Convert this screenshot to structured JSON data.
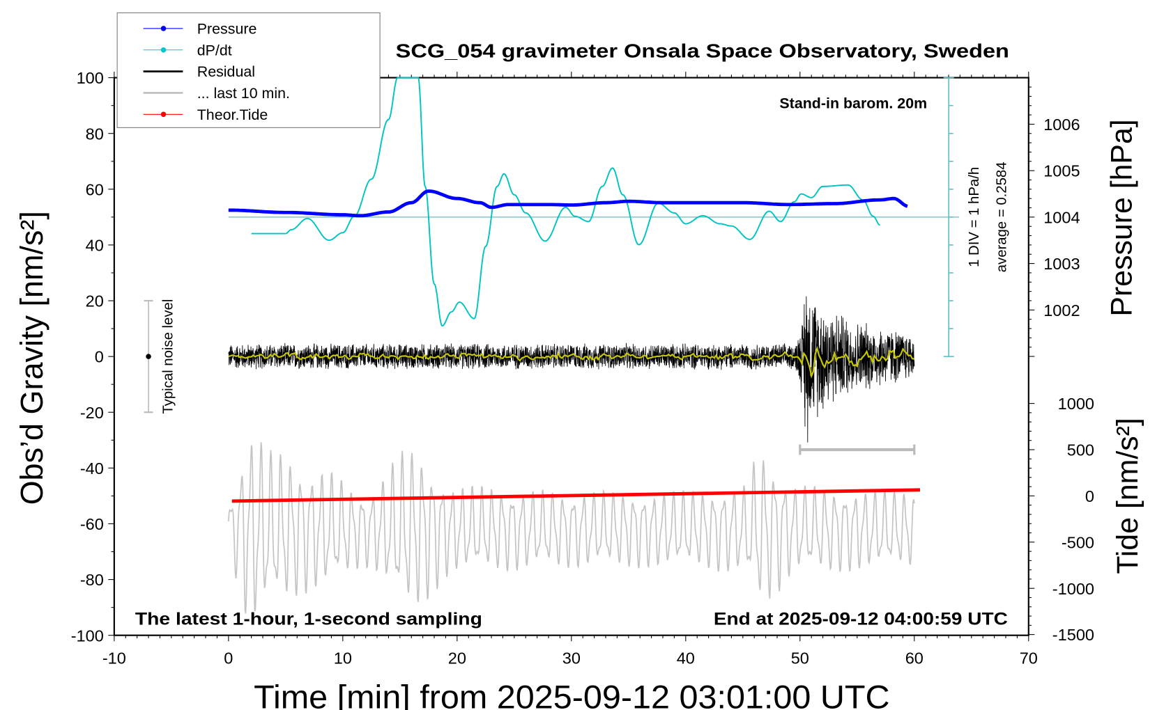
{
  "chart_data": {
    "type": "line",
    "title": "SCG_054 gravimeter Onsala Space Observatory, Sweden",
    "xlabel": "Time [min] from 2025-09-12 03:01:00 UTC",
    "ylabel": "Obs’d Gravity [nm/s²]",
    "ylabel_pressure": "Pressure [hPa]",
    "ylabel_tide": "Tide [nm/s²]",
    "xlim": [
      -10,
      70
    ],
    "ylim": [
      -100,
      100
    ],
    "pressure_lim_visible": [
      1001,
      1007
    ],
    "tide_lim": [
      -1500,
      1000
    ],
    "x_ticks": [
      "-10",
      "0",
      "10",
      "20",
      "30",
      "40",
      "50",
      "60",
      "70"
    ],
    "y_ticks": [
      "-100",
      "-80",
      "-60",
      "-40",
      "-20",
      "0",
      "20",
      "40",
      "60",
      "80",
      "100"
    ],
    "pressure_ticks": [
      "1002",
      "1003",
      "1004",
      "1005",
      "1006"
    ],
    "tide_ticks": [
      "-1500",
      "-1000",
      "-500",
      "0",
      "500",
      "1000"
    ],
    "annotations": {
      "barometer": "Stand-in barom. 20m",
      "sampling": "The latest 1-hour, 1-second sampling",
      "end_time": "End at 2025-09-12 04:00:59 UTC",
      "dpdt_scale": "1 DIV = 1 hPa/h",
      "dpdt_average": "average = 0.2584",
      "noise_label": "Typical noise level"
    },
    "noise_level_range": [
      -20,
      20
    ],
    "last10_window": [
      50,
      60
    ],
    "legend": [
      {
        "label": "Pressure",
        "color": "#0000ff",
        "style": "line-dot"
      },
      {
        "label": "dP/dt",
        "color": "#00c8c8",
        "style": "line-dot"
      },
      {
        "label": "Residual",
        "color": "#000000",
        "style": "line"
      },
      {
        "label": "... last 10 min.",
        "color": "#bebebe",
        "style": "line"
      },
      {
        "label": "Theor.Tide",
        "color": "#ff0000",
        "style": "line-dot"
      }
    ],
    "series": {
      "pressure_hPa": {
        "t": [
          0,
          5,
          10,
          11.5,
          14,
          16,
          17.5,
          20,
          22,
          23,
          24.5,
          28,
          30,
          33,
          35,
          38,
          45,
          49,
          53,
          57,
          58.2,
          59.5
        ],
        "v": [
          1004.15,
          1004.1,
          1004.05,
          1004.03,
          1004.11,
          1004.31,
          1004.56,
          1004.4,
          1004.31,
          1004.21,
          1004.27,
          1004.27,
          1004.26,
          1004.31,
          1004.34,
          1004.31,
          1004.31,
          1004.27,
          1004.29,
          1004.37,
          1004.4,
          1004.23
        ]
      },
      "dpdt_hPa_per_h": {
        "t": [
          2,
          5,
          5.5,
          6.9,
          8.8,
          10,
          11,
          12.5,
          14,
          14.8,
          15.5,
          16.6,
          17.2,
          18,
          18.7,
          19.5,
          20.2,
          21.5,
          22.5,
          23.5,
          24.1,
          25,
          26,
          27.7,
          29.5,
          30.3,
          31.5,
          32.7,
          33.6,
          34.5,
          35.9,
          37.6,
          39,
          40,
          41.5,
          43,
          44,
          45.6,
          47.3,
          48.3,
          49.5,
          50.1,
          51,
          52,
          54.2,
          55.5,
          56.4,
          57
        ],
        "v": [
          -0.59,
          -0.59,
          -0.45,
          -0.05,
          -0.83,
          -0.56,
          0.03,
          1.36,
          3.5,
          5.0,
          8.0,
          5.0,
          1.1,
          -2.4,
          -3.9,
          -3.4,
          -3.05,
          -3.64,
          -1.05,
          1.1,
          1.55,
          0.8,
          0.15,
          -0.86,
          0.35,
          0.03,
          -0.16,
          1.1,
          1.76,
          0.8,
          -0.99,
          0.5,
          0.15,
          -0.24,
          0.05,
          -0.24,
          -0.32,
          -0.8,
          0.21,
          -0.16,
          0.55,
          0.83,
          0.7,
          1.1,
          1.15,
          0.62,
          0.03,
          -0.29
        ]
      },
      "dpdt_average": 0.2584,
      "theoretical_tide_nm_s2": {
        "t": [
          0.3,
          60.5
        ],
        "v": [
          -56,
          65
        ]
      },
      "residual_envelope": {
        "t": [
          0,
          49.5,
          50.2,
          50.5,
          51,
          52,
          53,
          55,
          57,
          60
        ],
        "amplitude": [
          5,
          5,
          14,
          35,
          25,
          22,
          18,
          14,
          12,
          9
        ]
      },
      "last10_envelope": {
        "t": [
          0,
          2,
          4,
          8,
          12,
          16,
          20,
          30,
          40,
          45,
          46.5,
          50,
          60
        ],
        "amplitude": [
          12,
          36,
          28,
          22,
          14,
          30,
          16,
          14,
          14,
          16,
          28,
          16,
          14
        ]
      }
    }
  }
}
